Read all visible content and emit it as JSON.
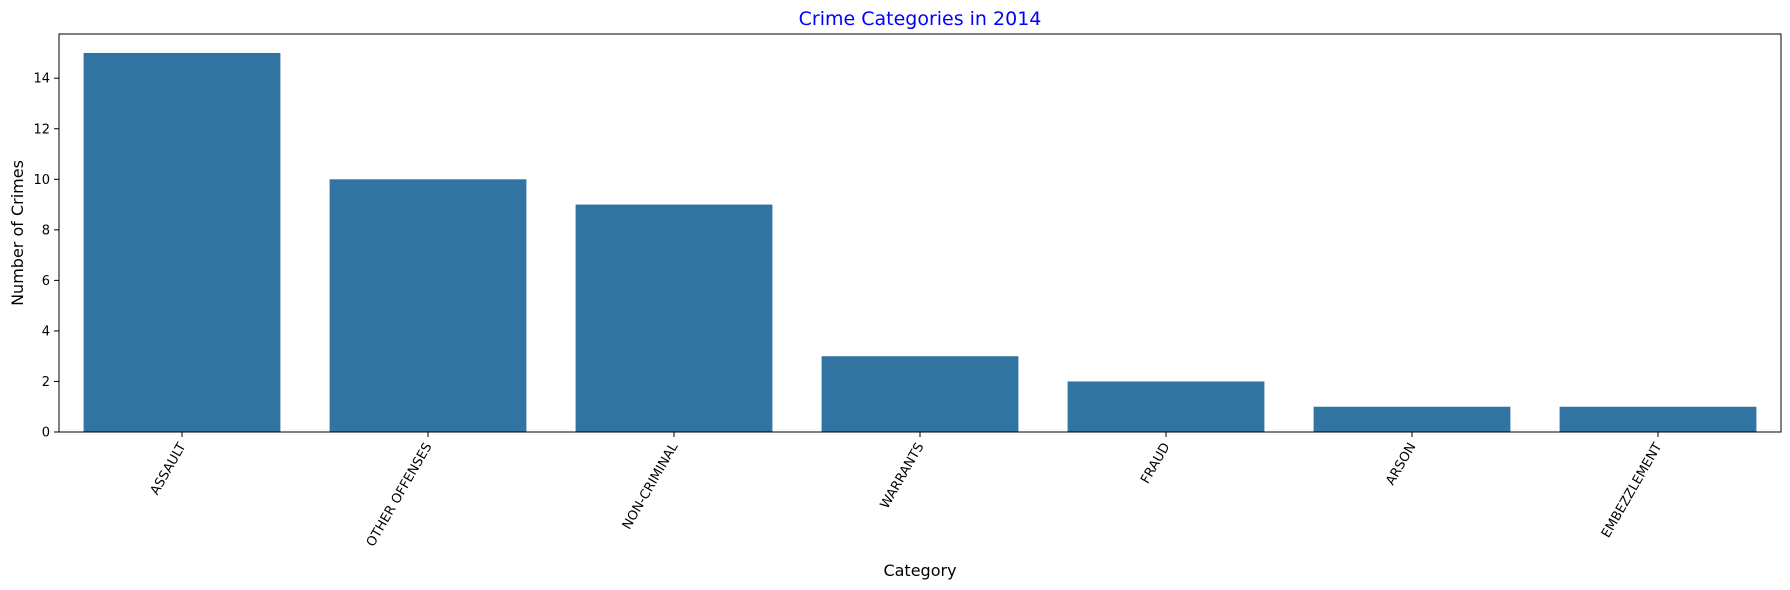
{
  "colors": {
    "bar": "#3274a1",
    "title": "#0000ff",
    "axis": "#000000",
    "background": "#ffffff"
  },
  "chart_data": {
    "type": "bar",
    "title": "Crime Categories in 2014",
    "xlabel": "Category",
    "ylabel": "Number of Crimes",
    "categories": [
      "ASSAULT",
      "OTHER OFFENSES",
      "NON-CRIMINAL",
      "WARRANTS",
      "FRAUD",
      "ARSON",
      "EMBEZZLEMENT"
    ],
    "values": [
      15,
      10,
      9,
      3,
      2,
      1,
      1
    ],
    "ylim": [
      0,
      15.75
    ],
    "yticks": [
      0,
      2,
      4,
      6,
      8,
      10,
      12,
      14
    ],
    "grid": false,
    "legend": "none",
    "xtick_rotation_deg": -60
  }
}
